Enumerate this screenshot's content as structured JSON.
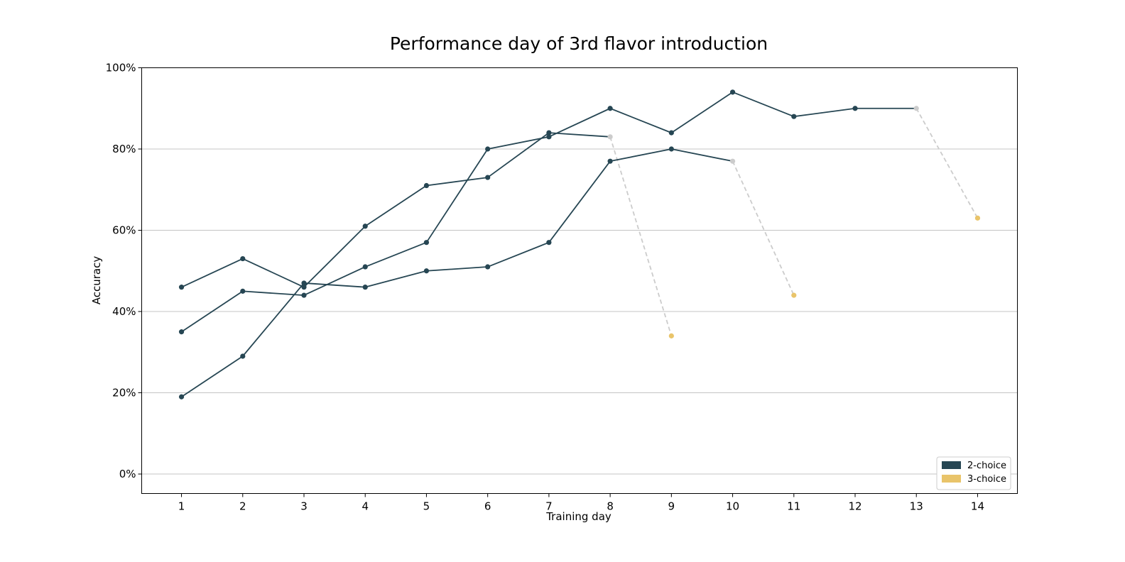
{
  "chart_data": {
    "type": "line",
    "title": "Performance day of 3rd flavor introduction",
    "xlabel": "Training day",
    "ylabel": "Accuracy",
    "x_ticks": [
      1,
      2,
      3,
      4,
      5,
      6,
      7,
      8,
      9,
      10,
      11,
      12,
      13,
      14
    ],
    "xlim": [
      0.35,
      14.65
    ],
    "y_ticks": [
      0,
      0.2,
      0.4,
      0.6,
      0.8,
      1.0
    ],
    "y_tick_labels": [
      "0%",
      "20%",
      "40%",
      "60%",
      "80%",
      "100%"
    ],
    "ylim": [
      -0.048,
      1.0
    ],
    "grid": "horizontal",
    "legend_position": "bottom-right",
    "legend": [
      {
        "label": "2-choice",
        "color": "#264653"
      },
      {
        "label": "3-choice",
        "color": "#E9C46A"
      }
    ],
    "colors": {
      "two_choice": "#264653",
      "three_choice": "#E9C46A",
      "transition": "#cccccc"
    },
    "series": [
      {
        "two_choice": [
          [
            1,
            0.46
          ],
          [
            2,
            0.53
          ],
          [
            3,
            0.46
          ],
          [
            4,
            0.61
          ],
          [
            5,
            0.71
          ],
          [
            6,
            0.73
          ],
          [
            7,
            0.84
          ],
          [
            8,
            0.83
          ]
        ],
        "three_choice": [
          [
            9,
            0.34
          ]
        ]
      },
      {
        "two_choice": [
          [
            1,
            0.35
          ],
          [
            2,
            0.45
          ],
          [
            3,
            0.44
          ],
          [
            4,
            0.51
          ],
          [
            5,
            0.57
          ],
          [
            6,
            0.8
          ],
          [
            7,
            0.83
          ],
          [
            8,
            0.9
          ],
          [
            9,
            0.84
          ],
          [
            10,
            0.94
          ],
          [
            11,
            0.88
          ],
          [
            12,
            0.9
          ],
          [
            13,
            0.9
          ]
        ],
        "three_choice": [
          [
            14,
            0.63
          ]
        ]
      },
      {
        "two_choice": [
          [
            1,
            0.19
          ],
          [
            2,
            0.29
          ],
          [
            3,
            0.47
          ],
          [
            4,
            0.46
          ],
          [
            5,
            0.5
          ],
          [
            6,
            0.51
          ],
          [
            7,
            0.57
          ],
          [
            8,
            0.77
          ],
          [
            9,
            0.8
          ],
          [
            10,
            0.77
          ]
        ],
        "three_choice": [
          [
            11,
            0.44
          ]
        ]
      }
    ]
  }
}
